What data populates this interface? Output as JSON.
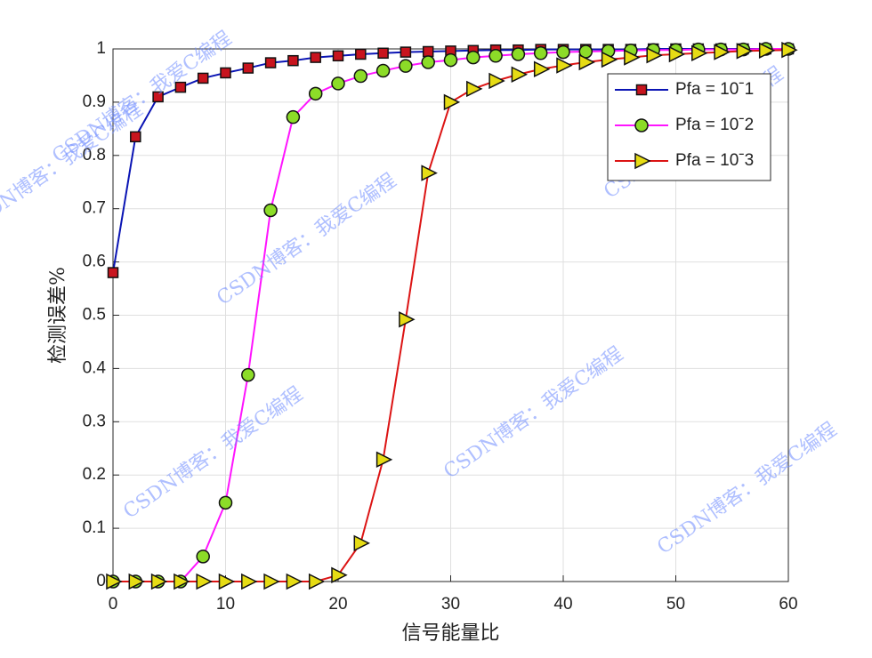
{
  "chart_data": {
    "type": "line",
    "xlabel": "信号能量比",
    "ylabel": "检测误差%",
    "watermark": "CSDN博客：我爱C编程",
    "x": [
      0,
      2,
      4,
      6,
      8,
      10,
      12,
      14,
      16,
      18,
      20,
      22,
      24,
      26,
      28,
      30,
      32,
      34,
      36,
      38,
      40,
      42,
      44,
      46,
      48,
      50,
      52,
      54,
      56,
      58,
      60
    ],
    "series": [
      {
        "name": "Pfa = 10ˉ1",
        "color": "#0a14b4",
        "marker": "square",
        "marker_color": "#c8141e",
        "values": [
          0.58,
          0.835,
          0.91,
          0.928,
          0.945,
          0.955,
          0.964,
          0.974,
          0.978,
          0.984,
          0.987,
          0.99,
          0.992,
          0.994,
          0.995,
          0.996,
          0.997,
          0.998,
          0.998,
          0.999,
          0.999,
          0.999,
          0.999,
          0.999,
          1,
          1,
          1,
          1,
          1,
          1,
          1
        ]
      },
      {
        "name": "Pfa = 10ˉ2",
        "color": "#ff14ff",
        "marker": "circle",
        "marker_color": "#8cdc28",
        "values": [
          0,
          0,
          0,
          0,
          0.047,
          0.148,
          0.388,
          0.697,
          0.872,
          0.916,
          0.935,
          0.949,
          0.959,
          0.968,
          0.975,
          0.979,
          0.984,
          0.987,
          0.99,
          0.992,
          0.994,
          0.995,
          0.996,
          0.997,
          0.998,
          0.998,
          0.999,
          0.999,
          0.999,
          1,
          1
        ]
      },
      {
        "name": "Pfa = 10ˉ3",
        "color": "#dc1414",
        "marker": "triangle-right",
        "marker_color": "#e6dc14",
        "values": [
          0,
          0,
          0,
          0,
          0,
          0,
          0,
          0,
          0,
          0,
          0.012,
          0.072,
          0.229,
          0.492,
          0.767,
          0.9,
          0.925,
          0.94,
          0.952,
          0.962,
          0.969,
          0.975,
          0.98,
          0.984,
          0.988,
          0.99,
          0.992,
          0.994,
          0.996,
          0.997,
          0.998
        ]
      }
    ],
    "xlim": [
      0,
      60
    ],
    "xticks": [
      0,
      10,
      20,
      30,
      40,
      50,
      60
    ],
    "ylim": [
      0,
      1
    ],
    "yticks": [
      0,
      0.1,
      0.2,
      0.3,
      0.4,
      0.5,
      0.6,
      0.7,
      0.8,
      0.9,
      1
    ],
    "grid": true,
    "legend": "northeast"
  }
}
